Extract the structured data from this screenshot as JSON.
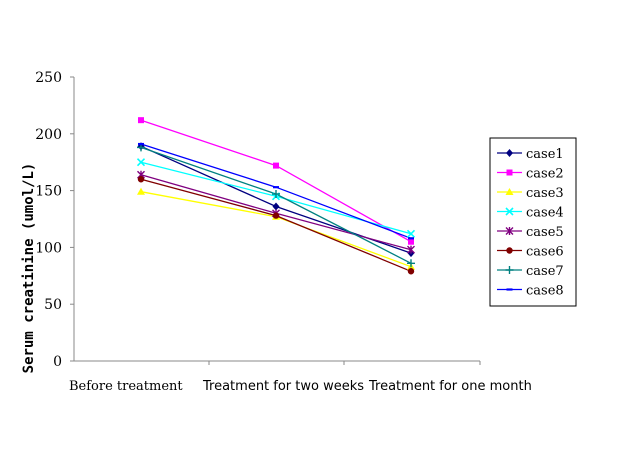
{
  "chart_data": {
    "type": "line",
    "ylabel": "Serum creatinine (umol/L)",
    "xlabel": "",
    "ylim": [
      0,
      250
    ],
    "yticks": [
      "0",
      "50",
      "100",
      "150",
      "200",
      "250"
    ],
    "categories": [
      "Before treatment",
      "Treatment for two weeks",
      "Treatment for one month"
    ],
    "grid": false,
    "legend_position": "right",
    "series": [
      {
        "name": "case1",
        "values": [
          189,
          136,
          95
        ],
        "color": "#000080",
        "marker": "diamond"
      },
      {
        "name": "case2",
        "values": [
          212,
          172,
          105
        ],
        "color": "#FF00FF",
        "marker": "square"
      },
      {
        "name": "case3",
        "values": [
          149,
          127,
          83
        ],
        "color": "#FFFF00",
        "marker": "triangle"
      },
      {
        "name": "case4",
        "values": [
          175,
          145,
          112
        ],
        "color": "#00FFFF",
        "marker": "x"
      },
      {
        "name": "case5",
        "values": [
          164,
          130,
          98
        ],
        "color": "#800080",
        "marker": "star"
      },
      {
        "name": "case6",
        "values": [
          160,
          128,
          79
        ],
        "color": "#800000",
        "marker": "circle"
      },
      {
        "name": "case7",
        "values": [
          188,
          147,
          86
        ],
        "color": "#008080",
        "marker": "plus"
      },
      {
        "name": "case8",
        "values": [
          191,
          153,
          108
        ],
        "color": "#0000FF",
        "marker": "dash"
      }
    ]
  }
}
